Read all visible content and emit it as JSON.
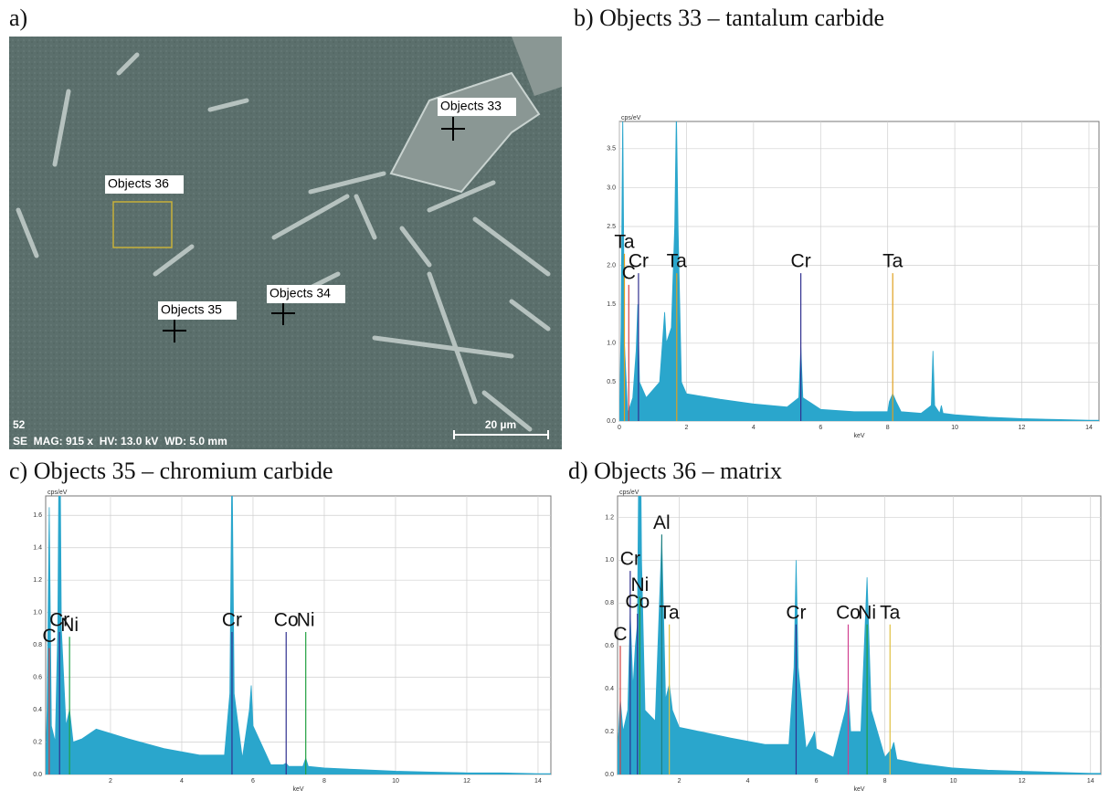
{
  "panel_a": {
    "title": "a)",
    "labels": [
      "Objects 33",
      "Objects 36",
      "Objects 35",
      "Objects 34"
    ],
    "frame_number": "52",
    "info": "SE  MAG: 915 x  HV: 13.0 kV  WD: 5.0 mm",
    "scale_bar": "20 µm"
  },
  "chart_data": [
    {
      "type": "spectrum",
      "title": "b) Objects 33 – tantalum carbide",
      "y_unit": "cps/eV",
      "x_label": "keV",
      "color": "#2aa6cc",
      "xlim": [
        0,
        14.3
      ],
      "xticks": [
        0,
        2,
        4,
        6,
        8,
        10,
        12,
        14
      ],
      "ylim": [
        0,
        3.85
      ],
      "yticks": [
        {
          "value": 0,
          "label": "0.0"
        },
        0.5,
        {
          "value": 1,
          "label": "1.0"
        },
        1.5,
        {
          "value": 2,
          "label": "2.0"
        },
        2.5,
        {
          "value": 3,
          "label": "3.0"
        },
        3.5
      ],
      "grid": true,
      "spectrum": {
        "x": [
          0,
          0.05,
          0.1,
          0.15,
          0.25,
          0.4,
          0.5,
          0.55,
          0.6,
          0.8,
          1.2,
          1.3,
          1.35,
          1.4,
          1.55,
          1.65,
          1.7,
          1.75,
          1.85,
          2.0,
          3,
          4,
          5,
          5.35,
          5.41,
          5.47,
          6,
          7,
          8,
          8.05,
          8.15,
          8.25,
          8.4,
          9,
          9.3,
          9.35,
          9.4,
          9.55,
          9.6,
          9.65,
          10,
          11,
          12,
          13,
          14,
          14.3
        ],
        "values": [
          0,
          1.2,
          4.0,
          1.0,
          0.1,
          0.3,
          0.9,
          1.5,
          0.5,
          0.3,
          0.5,
          1.1,
          1.4,
          1.0,
          1.2,
          2.5,
          4.0,
          2.5,
          0.5,
          0.35,
          0.28,
          0.22,
          0.18,
          0.3,
          0.95,
          0.3,
          0.15,
          0.12,
          0.12,
          0.25,
          0.35,
          0.25,
          0.12,
          0.1,
          0.2,
          0.9,
          0.2,
          0.1,
          0.2,
          0.1,
          0.08,
          0.05,
          0.03,
          0.02,
          0.01,
          0.01
        ]
      },
      "markers": [
        {
          "label": "Ta",
          "x": 0.15,
          "value": 2.15,
          "color": "#e0a020"
        },
        {
          "label": "C",
          "x": 0.28,
          "value": 1.75,
          "color": "#d04040"
        },
        {
          "label": "Cr",
          "x": 0.57,
          "value": 1.9,
          "color": "#303090"
        },
        {
          "label": "Ta",
          "x": 1.71,
          "value": 1.9,
          "color": "#e0a020"
        },
        {
          "label": "Cr",
          "x": 5.41,
          "value": 1.9,
          "color": "#303090"
        },
        {
          "label": "Ta",
          "x": 8.15,
          "value": 1.9,
          "color": "#e0a020"
        }
      ]
    },
    {
      "type": "spectrum",
      "title": "c) Objects 35 – chromium carbide",
      "y_unit": "cps/eV",
      "x_label": "keV",
      "color": "#2aa6cc",
      "xlim": [
        0.18,
        14.36
      ],
      "xticks": [
        2,
        4,
        6,
        8,
        10,
        12,
        14
      ],
      "ylim": [
        0,
        1.72
      ],
      "yticks": [
        {
          "value": 0,
          "label": "0.0"
        },
        0.2,
        0.4,
        0.6,
        0.8,
        {
          "value": 1,
          "label": "1.0"
        },
        1.2,
        1.4,
        1.6
      ],
      "grid": true,
      "spectrum": {
        "x": [
          0.18,
          0.22,
          0.28,
          0.34,
          0.45,
          0.52,
          0.57,
          0.62,
          0.75,
          0.85,
          0.95,
          1.2,
          1.6,
          2.5,
          3.5,
          4.5,
          5.2,
          5.35,
          5.41,
          5.47,
          5.7,
          5.9,
          5.95,
          6.0,
          6.5,
          6.85,
          6.93,
          7.0,
          7.4,
          7.48,
          7.55,
          8,
          9,
          10,
          11,
          12,
          13,
          14,
          14.36
        ],
        "values": [
          0.05,
          0.4,
          1.65,
          0.3,
          0.2,
          0.9,
          2.5,
          0.9,
          0.3,
          0.4,
          0.2,
          0.22,
          0.28,
          0.22,
          0.16,
          0.12,
          0.12,
          0.5,
          2.0,
          0.5,
          0.1,
          0.4,
          0.55,
          0.3,
          0.06,
          0.06,
          0.07,
          0.05,
          0.05,
          0.1,
          0.05,
          0.04,
          0.03,
          0.02,
          0.015,
          0.01,
          0.01,
          0.005,
          0.005
        ]
      },
      "markers": [
        {
          "label": "C",
          "x": 0.28,
          "value": 0.78,
          "color": "#d04040"
        },
        {
          "label": "Cr",
          "x": 0.57,
          "value": 0.88,
          "color": "#303090"
        },
        {
          "label": "Ni",
          "x": 0.85,
          "value": 0.85,
          "color": "#20a040"
        },
        {
          "label": "Cr",
          "x": 5.41,
          "value": 0.88,
          "color": "#303090"
        },
        {
          "label": "Co",
          "x": 6.93,
          "value": 0.88,
          "color": "#303090"
        },
        {
          "label": "Ni",
          "x": 7.48,
          "value": 0.88,
          "color": "#20a040"
        }
      ]
    },
    {
      "type": "spectrum",
      "title": "d) Objects 36 – matrix",
      "y_unit": "cps/eV",
      "x_label": "keV",
      "color": "#2aa6cc",
      "xlim": [
        0.2,
        14.3
      ],
      "xticks": [
        2,
        4,
        6,
        8,
        10,
        12,
        14
      ],
      "ylim": [
        0,
        1.3
      ],
      "yticks": [
        {
          "value": 0,
          "label": "0.0"
        },
        0.2,
        0.4,
        0.6,
        0.8,
        {
          "value": 1,
          "label": "1.0"
        },
        1.2
      ],
      "grid": true,
      "spectrum": {
        "x": [
          0.2,
          0.28,
          0.36,
          0.5,
          0.57,
          0.65,
          0.72,
          0.78,
          0.82,
          0.85,
          0.9,
          1.0,
          1.3,
          1.49,
          1.6,
          1.71,
          1.8,
          2.0,
          2.6,
          3.5,
          4.5,
          5.2,
          5.35,
          5.41,
          5.47,
          5.7,
          5.9,
          5.95,
          6.0,
          6.5,
          6.85,
          6.93,
          7.0,
          7.3,
          7.48,
          7.6,
          8.0,
          8.2,
          8.26,
          8.35,
          9,
          10,
          11,
          12,
          13,
          14,
          14.3
        ],
        "values": [
          0.1,
          0.35,
          0.2,
          0.3,
          0.75,
          0.4,
          0.6,
          0.7,
          1.5,
          2.0,
          1.0,
          0.3,
          0.25,
          1.1,
          0.35,
          0.42,
          0.3,
          0.22,
          0.2,
          0.17,
          0.14,
          0.14,
          0.5,
          1.0,
          0.5,
          0.12,
          0.18,
          0.2,
          0.12,
          0.08,
          0.3,
          0.4,
          0.2,
          0.2,
          0.92,
          0.3,
          0.08,
          0.12,
          0.15,
          0.07,
          0.05,
          0.03,
          0.02,
          0.015,
          0.01,
          0.005,
          0.005
        ]
      },
      "markers": [
        {
          "label": "C",
          "x": 0.28,
          "value": 0.6,
          "color": "#d04040"
        },
        {
          "label": "Cr",
          "x": 0.57,
          "value": 0.95,
          "color": "#303090"
        },
        {
          "label": "Co",
          "x": 0.78,
          "value": 0.75,
          "color": "#303090"
        },
        {
          "label": "Ni",
          "x": 0.85,
          "value": 0.83,
          "color": "#20a040"
        },
        {
          "label": "Al",
          "x": 1.49,
          "value": 1.12,
          "color": "#208080"
        },
        {
          "label": "Ta",
          "x": 1.71,
          "value": 0.7,
          "color": "#e0c040"
        },
        {
          "label": "Cr",
          "x": 5.41,
          "value": 0.7,
          "color": "#303090"
        },
        {
          "label": "Co",
          "x": 6.93,
          "value": 0.7,
          "color": "#d04090"
        },
        {
          "label": "Ni",
          "x": 7.48,
          "value": 0.7,
          "color": "#20a040"
        },
        {
          "label": "Ta",
          "x": 8.15,
          "value": 0.7,
          "color": "#e0c040"
        }
      ]
    }
  ]
}
